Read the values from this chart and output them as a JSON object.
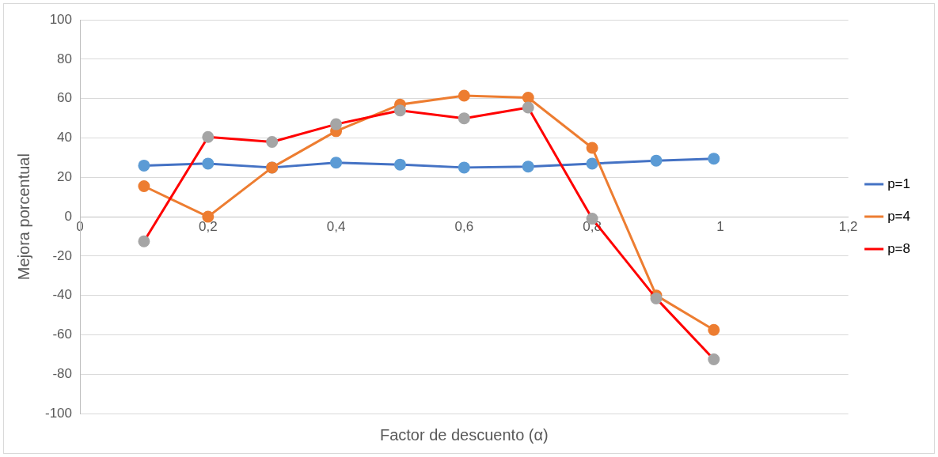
{
  "chart_data": {
    "type": "line",
    "xlabel": "Factor de descuento (α)",
    "ylabel": "Mejora porcentual",
    "x": [
      0.1,
      0.2,
      0.3,
      0.4,
      0.5,
      0.6,
      0.7,
      0.8,
      0.9,
      0.99
    ],
    "series": [
      {
        "name": "p=1",
        "color": "#4472c4",
        "colors": [
          "#5b9bd5",
          "#5b9bd5",
          "#5b9bd5",
          "#5b9bd5",
          "#5b9bd5",
          "#5b9bd5",
          "#5b9bd5",
          "#5b9bd5",
          "#5b9bd5",
          "#5b9bd5"
        ],
        "values": [
          26,
          27,
          25,
          27.5,
          26.5,
          25,
          25.5,
          27,
          28.5,
          29.5
        ]
      },
      {
        "name": "p=4",
        "color": "#ed7d31",
        "values": [
          15.5,
          0,
          25,
          43.5,
          57,
          61.5,
          60.5,
          35,
          -40,
          -57.5
        ]
      },
      {
        "name": "p=8",
        "color": "#ff0000",
        "colors": [
          "#a5a5a5",
          "#a5a5a5",
          "#a5a5a5",
          "#a5a5a5",
          "#a5a5a5",
          "#a5a5a5",
          "#a5a5a5",
          "#a5a5a5",
          "#a5a5a5",
          "#a5a5a5"
        ],
        "values": [
          -12.5,
          40.5,
          38,
          47,
          54,
          50,
          55.5,
          -1,
          -41.5,
          -72.5
        ]
      }
    ],
    "xlim": [
      0,
      1.2
    ],
    "xticks": [
      0,
      {
        "value": 0.2,
        "label": "0,2"
      },
      {
        "value": 0.4,
        "label": "0,4"
      },
      {
        "value": 0.6,
        "label": "0,6"
      },
      {
        "value": 0.8,
        "label": "0,8"
      },
      1,
      {
        "value": 1.2,
        "label": "1,2"
      }
    ],
    "ylim": [
      -100,
      100
    ],
    "yticks": [
      -100,
      -80,
      -60,
      -40,
      -20,
      0,
      20,
      40,
      60,
      80,
      100
    ],
    "grid": "y",
    "legend": "right",
    "marker": "circle",
    "line_style": "solid"
  }
}
